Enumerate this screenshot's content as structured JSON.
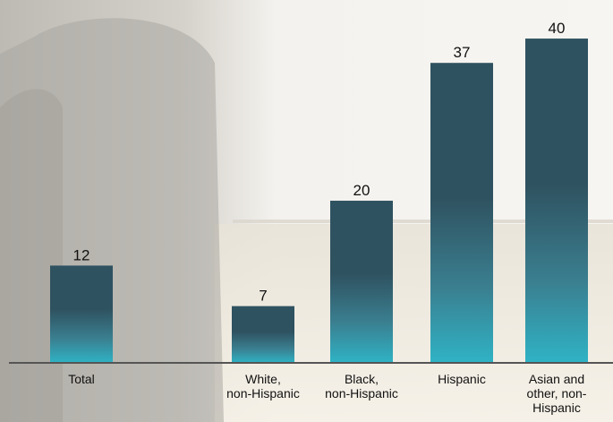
{
  "chart_data": {
    "type": "bar",
    "categories": [
      [
        "Total"
      ],
      [
        "White,",
        "non-Hispanic"
      ],
      [
        "Black,",
        "non-Hispanic"
      ],
      [
        "Hispanic"
      ],
      [
        "Asian and",
        "other, non-",
        "Hispanic"
      ]
    ],
    "values": [
      12,
      7,
      20,
      37,
      40
    ],
    "data_labels": [
      "12",
      "7",
      "20",
      "37",
      "40"
    ],
    "ylim": [
      0,
      41
    ],
    "grid": false,
    "legend": "none"
  },
  "colors": {
    "bar_top": "#2f5260",
    "bar_mid": "#3a7f90",
    "bar_bottom": "#2fb3c5",
    "axis": "#555555",
    "bg_dark": "#6f6f6f",
    "bg_light": "#f3efe6"
  }
}
